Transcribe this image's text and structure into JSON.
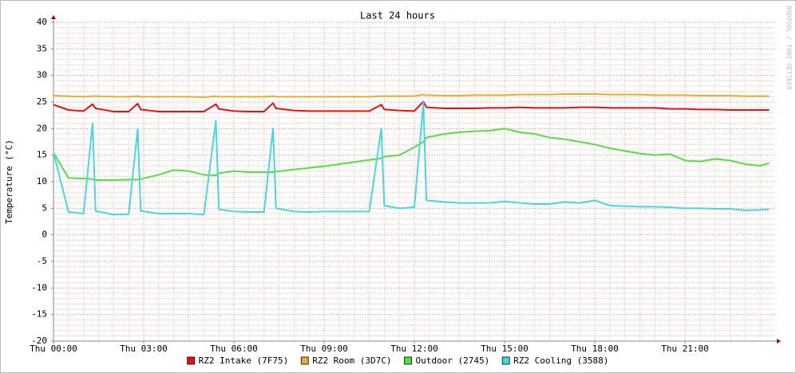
{
  "chart_data": {
    "type": "line",
    "title": "Last 24 hours",
    "y_label": "Temperature (°C)",
    "watermark": "RRDTOOL / TOBI OETIKER",
    "x": [
      0,
      0.5,
      1,
      1.3,
      1.4,
      2,
      2.5,
      2.8,
      2.9,
      3.5,
      4,
      4.5,
      5,
      5.4,
      5.5,
      6,
      6.5,
      7,
      7.3,
      7.4,
      8,
      8.5,
      9,
      9.5,
      10,
      10.5,
      10.9,
      11,
      11.5,
      12,
      12.3,
      12.4,
      13,
      13.5,
      14,
      14.5,
      15,
      15.5,
      16,
      16.5,
      17,
      17.5,
      18,
      18.5,
      19,
      19.5,
      20,
      20.5,
      21,
      21.5,
      22,
      22.5,
      23,
      23.5,
      23.8
    ],
    "series": [
      {
        "name": "RZ2 Intake (7F75)",
        "color": "#e81010",
        "values": [
          24.5,
          23.5,
          23.3,
          24.6,
          23.8,
          23.2,
          23.2,
          24.7,
          23.6,
          23.2,
          23.2,
          23.2,
          23.2,
          24.6,
          23.7,
          23.3,
          23.2,
          23.2,
          24.8,
          23.8,
          23.4,
          23.3,
          23.3,
          23.3,
          23.3,
          23.3,
          24.5,
          23.6,
          23.4,
          23.3,
          25.1,
          24.0,
          23.8,
          23.8,
          23.8,
          23.9,
          23.9,
          24.0,
          23.9,
          23.9,
          23.9,
          24.0,
          24.0,
          23.9,
          23.9,
          23.9,
          23.9,
          23.7,
          23.7,
          23.6,
          23.6,
          23.5,
          23.5,
          23.5,
          23.5
        ]
      },
      {
        "name": "RZ2 Room (3D7C)",
        "color": "#e0b030",
        "values": [
          26.2,
          26.1,
          26.0,
          26.1,
          26.1,
          26.0,
          26.0,
          26.1,
          26.0,
          26.0,
          26.0,
          26.0,
          25.9,
          26.1,
          26.0,
          26.0,
          26.0,
          26.0,
          26.1,
          26.0,
          26.0,
          26.0,
          26.0,
          26.0,
          26.0,
          26.0,
          26.1,
          26.1,
          26.1,
          26.1,
          26.4,
          26.3,
          26.2,
          26.2,
          26.3,
          26.3,
          26.3,
          26.4,
          26.4,
          26.4,
          26.5,
          26.5,
          26.5,
          26.4,
          26.4,
          26.4,
          26.3,
          26.3,
          26.3,
          26.2,
          26.2,
          26.2,
          26.1,
          26.1,
          26.1
        ]
      },
      {
        "name": "Outdoor (2745)",
        "color": "#55dd44",
        "values": [
          15.5,
          10.7,
          10.6,
          10.5,
          10.3,
          10.3,
          10.4,
          10.4,
          10.5,
          11.3,
          12.2,
          12.0,
          11.3,
          11.2,
          11.6,
          12.0,
          11.8,
          11.8,
          11.8,
          11.9,
          12.3,
          12.6,
          12.9,
          13.3,
          13.7,
          14.1,
          14.4,
          14.7,
          15.0,
          16.5,
          17.5,
          18.3,
          19.0,
          19.3,
          19.5,
          19.6,
          20.0,
          19.3,
          19.0,
          18.3,
          18.0,
          17.5,
          17.0,
          16.3,
          15.8,
          15.3,
          15.0,
          15.2,
          14.0,
          13.8,
          14.3,
          14.0,
          13.3,
          13.0,
          13.5
        ]
      },
      {
        "name": "RZ2 Cooling (3588)",
        "color": "#44d8e0",
        "values": [
          15.5,
          4.3,
          4.0,
          21,
          4.5,
          3.8,
          3.9,
          20,
          4.5,
          4.0,
          4.0,
          4.0,
          3.8,
          21.5,
          4.8,
          4.4,
          4.3,
          4.3,
          20,
          5.0,
          4.4,
          4.3,
          4.4,
          4.4,
          4.4,
          4.4,
          20,
          5.5,
          5.0,
          5.2,
          25,
          6.5,
          6.2,
          6.0,
          6.0,
          6.0,
          6.3,
          6.0,
          5.8,
          5.8,
          6.2,
          6.0,
          6.5,
          5.5,
          5.4,
          5.3,
          5.3,
          5.2,
          5.0,
          5.0,
          4.9,
          4.9,
          4.6,
          4.7,
          4.8
        ]
      }
    ],
    "xlim": [
      0,
      24
    ],
    "xticks": [
      {
        "value": 0,
        "label": "Thu 00:00"
      },
      {
        "value": 3,
        "label": "Thu 03:00"
      },
      {
        "value": 6,
        "label": "Thu 06:00"
      },
      {
        "value": 9,
        "label": "Thu 09:00"
      },
      {
        "value": 12,
        "label": "Thu 12:00"
      },
      {
        "value": 15,
        "label": "Thu 15:00"
      },
      {
        "value": 18,
        "label": "Thu 18:00"
      },
      {
        "value": 21,
        "label": "Thu 21:00"
      }
    ],
    "ylim": [
      -20,
      40
    ],
    "yticks": [
      -20,
      -15,
      -10,
      -5,
      0,
      5,
      10,
      15,
      20,
      25,
      30,
      35,
      40
    ],
    "grid": true,
    "legend": "bottom"
  }
}
